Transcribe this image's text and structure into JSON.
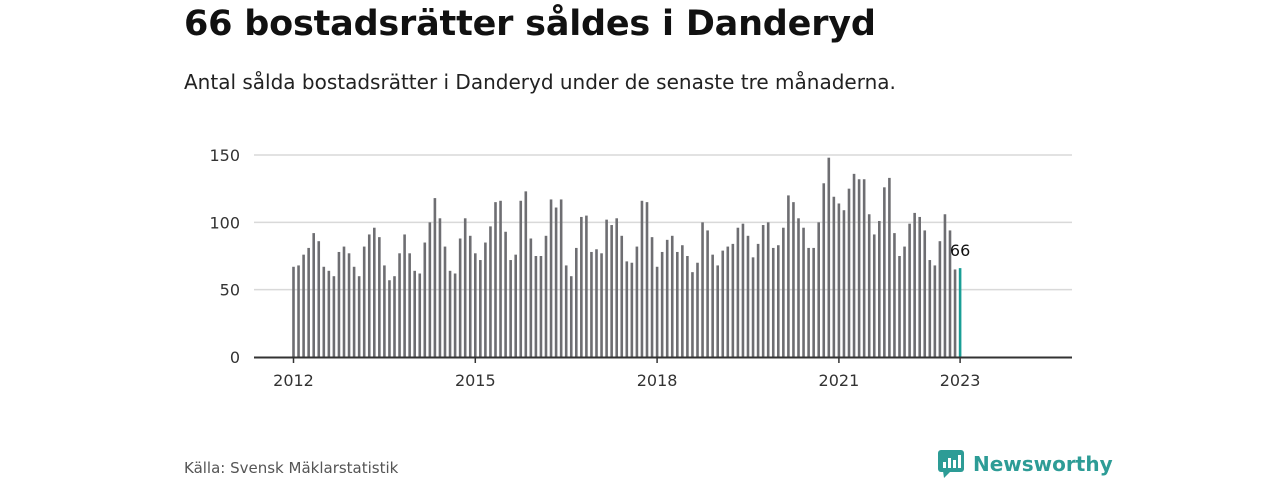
{
  "header": {
    "title": "66 bostadsrätter såldes i Danderyd",
    "subtitle": "Antal sålda bostadsrätter i Danderyd under de senaste tre månaderna."
  },
  "footer": {
    "source": "Källa: Svensk Mäklarstatistik",
    "brand_name": "Newsworthy",
    "brand_icon": "newsworthy-logo-icon"
  },
  "colors": {
    "bar": "#6e6e72",
    "highlight": "#1a9e96",
    "grid": "#d9d9d9",
    "axis": "#333333",
    "brand": "#2d9c96"
  },
  "chart_data": {
    "type": "bar",
    "x_start": "2012-01",
    "x_step": "month",
    "values": [
      67,
      68,
      76,
      81,
      92,
      86,
      67,
      64,
      60,
      78,
      82,
      77,
      67,
      60,
      82,
      91,
      96,
      89,
      68,
      57,
      60,
      77,
      91,
      77,
      64,
      62,
      85,
      100,
      118,
      103,
      82,
      64,
      62,
      88,
      103,
      90,
      77,
      72,
      85,
      97,
      115,
      116,
      93,
      72,
      76,
      116,
      123,
      88,
      75,
      75,
      90,
      117,
      111,
      117,
      68,
      60,
      81,
      104,
      105,
      78,
      80,
      77,
      102,
      98,
      103,
      90,
      71,
      70,
      82,
      116,
      115,
      89,
      67,
      78,
      87,
      90,
      78,
      83,
      75,
      63,
      70,
      100,
      94,
      76,
      68,
      79,
      82,
      84,
      96,
      99,
      90,
      74,
      84,
      98,
      100,
      81,
      83,
      96,
      120,
      115,
      103,
      96,
      81,
      81,
      100,
      129,
      148,
      119,
      114,
      109,
      125,
      136,
      132,
      132,
      106,
      91,
      101,
      126,
      133,
      92,
      75,
      82,
      99,
      107,
      104,
      94,
      72,
      68,
      86,
      106,
      94,
      65,
      66
    ],
    "highlight_last": true,
    "annotation": {
      "text": "66",
      "target": "last"
    },
    "x_ticks": [
      "2012",
      "2015",
      "2018",
      "2021",
      "2023"
    ],
    "y_ticks": [
      0,
      50,
      100,
      150
    ],
    "ylim": [
      0,
      150
    ],
    "grid": true,
    "legend": "none"
  }
}
